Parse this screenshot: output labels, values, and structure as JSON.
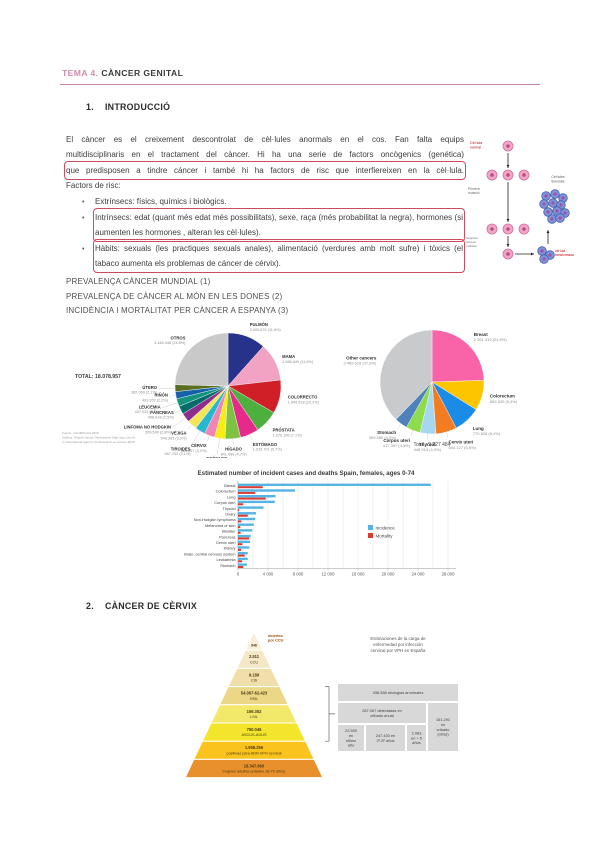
{
  "header": {
    "tema": "TEMA 4.",
    "title": "CÀNCER GENITAL"
  },
  "sections": {
    "intro": {
      "num": "1.",
      "title": "INTRODUCCIÓ"
    },
    "cervix": {
      "num": "2.",
      "title": "CÀNCER DE CÈRVIX"
    }
  },
  "intro": {
    "para_lines": [
      "El càncer es el creixement descontrolat de cèl·lules anormals en el cos. Fan falta equips",
      "multidisciplinaris en el tractament del càncer. Hi ha una serie de factors oncògenics (genética)",
      "que predisposen a tindre cáncer i també hi ha factors de risc que interfiereixen en la cèl·lula.",
      "Factors de risc:"
    ],
    "bullets": [
      "Extrínsecs: físics, químics i biològics.",
      "Intrínsecs: edat (quant més edat més possibilitats), sexe, raça (més probabilitat la negra), hormones (si aumenten les hormones , alteran les cèl·lules).",
      "Hàbits: sexuals (les practiques sexuals anales), alimentació (verdures amb molt sufre) i tòxics (el tabaco aumenta els problemas de cáncer de cérvix)."
    ],
    "diagram_labels": {
      "normal": [
        "Cèl·lula",
        "normal"
      ],
      "first": [
        "Primera",
        "mutació"
      ],
      "second": [
        "Segona i",
        "tercera",
        "mutació"
      ],
      "transformed": [
        "cèl·lula",
        "transformada"
      ],
      "tumor": [
        "Cèl·lules",
        "tumorals"
      ]
    }
  },
  "prevalence_headings": [
    "PREVALENÇA CÀNCER MUNDIAL  (1)",
    "PREVALENÇA DE CÀNCER AL MÓN EN LES DONES (2)",
    "INCIDÈNCIA I MORTALITAT PER CÀNCER A ESPANYA (3)"
  ],
  "chart_data": [
    {
      "type": "pie",
      "name": "world-cancer-incidence",
      "total_label": "TOTAL: 18.078.957",
      "source_lines": [
        "Fuente: GLOBOCAN 2018",
        "Gráfica: Global Cancer Observatory (http://gco.iarc.fr)",
        "© International Agency for Research on Cancer 2018"
      ],
      "slices": [
        {
          "label": "PULMÓN",
          "value_label": "2.093.876 (11,6%)",
          "pct": 11.6,
          "color": "#27338a"
        },
        {
          "label": "MAMA",
          "value_label": "2.088.849 (11,6%)",
          "pct": 11.6,
          "color": "#f2a3c4"
        },
        {
          "label": "COLORRECTO",
          "value_label": "1.849.518 (10,2%)",
          "pct": 10.2,
          "color": "#d01f26"
        },
        {
          "label": "PRÓSTATA",
          "value_label": "1.276.106 (7,1%)",
          "pct": 7.1,
          "color": "#4caf3e"
        },
        {
          "label": "ESTÓMAGO",
          "value_label": "1.033.701 (5,7%)",
          "pct": 5.7,
          "color": "#e52a8a"
        },
        {
          "label": "HÍGADO",
          "value_label": "841.080 (4,7%)",
          "pct": 4.7,
          "color": "#7dc242"
        },
        {
          "label": "ESÓFAGO",
          "value_label": "572.034 (3,2%)",
          "pct": 3.2,
          "color": "#f7ec13"
        },
        {
          "label": "CÉRVIX",
          "value_label": "569.847 (3,2%)",
          "pct": 3.2,
          "color": "#f284b5"
        },
        {
          "label": "TIROIDES",
          "value_label": "567.233 (3,1%)",
          "pct": 3.1,
          "color": "#26b8ce"
        },
        {
          "label": "VEJIGA",
          "value_label": "549.393 (3,0%)",
          "pct": 3.0,
          "color": "#f3e55a"
        },
        {
          "label": "LINFOMA NO HODGKIN",
          "value_label": "509.590 (2,8%)",
          "pct": 2.8,
          "color": "#8e2d8e"
        },
        {
          "label": "PÁNCREAS",
          "value_label": "458.918 (2,5%)",
          "pct": 2.5,
          "color": "#046a6a"
        },
        {
          "label": "LEUCEMIA",
          "value_label": "437.033 (2,4%)",
          "pct": 2.4,
          "color": "#14937c"
        },
        {
          "label": "RIÑÓN",
          "value_label": "403.262 (2,2%)",
          "pct": 2.2,
          "color": "#1460aa"
        },
        {
          "label": "ÚTERO",
          "value_label": "382.069 (2,1%)",
          "pct": 2.1,
          "color": "#5a6e1f"
        },
        {
          "label": "OTROS",
          "value_label": "4.446.448 (24,6%)",
          "pct": 24.6,
          "color": "#c9c9c9"
        }
      ]
    },
    {
      "type": "pie",
      "name": "world-cancer-incidence-women",
      "total_label": "Total : 9 227 484",
      "slices": [
        {
          "label": "Breast",
          "value_label": "2 261 419 (24,5%)",
          "pct": 24.5,
          "color": "#f964a8"
        },
        {
          "label": "Colorectum",
          "value_label": "865 630 (9,4%)",
          "pct": 9.4,
          "color": "#fdc500"
        },
        {
          "label": "Lung",
          "value_label": "770 828 (8,4%)",
          "pct": 8.4,
          "color": "#1a8ce8"
        },
        {
          "label": "Cervix uteri",
          "value_label": "604 127 (6,5%)",
          "pct": 6.5,
          "color": "#f47c20"
        },
        {
          "label": "Thyroid",
          "value_label": "448 915 (4,9%)",
          "pct": 4.9,
          "color": "#a5d8ef"
        },
        {
          "label": "Corpus uteri",
          "value_label": "417 367 (4,5%)",
          "pct": 4.5,
          "color": "#8fdb4e"
        },
        {
          "label": "Stomach",
          "value_label": "369 580 (4,0%)",
          "pct": 4.0,
          "color": "#4f81bd"
        },
        {
          "label": "Other cancers",
          "value_label": "3 489 618 (37,8%)",
          "pct": 37.8,
          "color": "#c9cacc"
        }
      ]
    },
    {
      "type": "bar",
      "name": "spain-females-incidence-mortality",
      "title": "Estimated number of incident cases and deaths Spain, females, ages 0-74",
      "categories": [
        "Breast",
        "Colorectum",
        "Lung",
        "Corpus uteri",
        "Thyroid",
        "Ovary",
        "Non-Hodgkin lymphoma",
        "Melanoma of skin",
        "Bladder",
        "Pancreas",
        "Cervix uteri",
        "Kidney",
        "Brain, central nervous system",
        "Leukaemia",
        "Stomach"
      ],
      "series": [
        {
          "name": "Incidence",
          "color": "#56b4e5",
          "values": [
            25700,
            7600,
            5000,
            4900,
            3400,
            2400,
            2300,
            2100,
            1900,
            1700,
            1600,
            1500,
            1300,
            1300,
            1200
          ]
        },
        {
          "name": "Mortality",
          "color": "#d73c32",
          "values": [
            3300,
            2300,
            3700,
            700,
            150,
            1300,
            450,
            300,
            350,
            1500,
            600,
            400,
            900,
            550,
            700
          ]
        }
      ],
      "xlim": [
        0,
        28000
      ],
      "xticks": [
        0,
        4000,
        8000,
        12000,
        16000,
        20000,
        24000,
        28000
      ],
      "xtick_labels": [
        "0",
        "4 000",
        "8 000",
        "12 000",
        "16 000",
        "20 000",
        "24 000",
        "28 000"
      ],
      "grid": true,
      "legend_position": "right"
    }
  ],
  "pyramid": {
    "title_lines": [
      "Estimaciones de la carga de",
      "enfermedad por infección",
      "cervical por VPH en España"
    ],
    "apex_side_label": [
      "muertes",
      "por CCU"
    ],
    "layers": [
      {
        "value": "848",
        "label": "",
        "color": "#f8efd9"
      },
      {
        "value": "2.511",
        "label": "CCU",
        "color": "#f5e8c6"
      },
      {
        "value": "9.189",
        "label": "CIS",
        "color": "#f1dfa9"
      },
      {
        "value": "54.067-62.423",
        "label": "HSIL",
        "color": "#ecd787"
      },
      {
        "value": "159.352",
        "label": "LSIL",
        "color": "#f2e96a"
      },
      {
        "value": "750.046",
        "label": "ASCUS-AGUS",
        "color": "#f3e52b"
      },
      {
        "value": "1.958.256",
        "label": "positivas para ADN VPH cervical",
        "color": "#fbc31d"
      },
      {
        "value": "18.347.660",
        "label": "mujeres adultas (edades 18-70 años)",
        "color": "#e8902c"
      }
    ],
    "table": {
      "r1": "438.358 citologías anormales",
      "r2a": "287.067 detectadas en cribado anual",
      "r2b": "151.291 no cribado (otras)",
      "r3": [
        "22.590 en último año",
        "247.430 en 2º-5º años",
        "2.083 en > 5 años"
      ]
    }
  }
}
